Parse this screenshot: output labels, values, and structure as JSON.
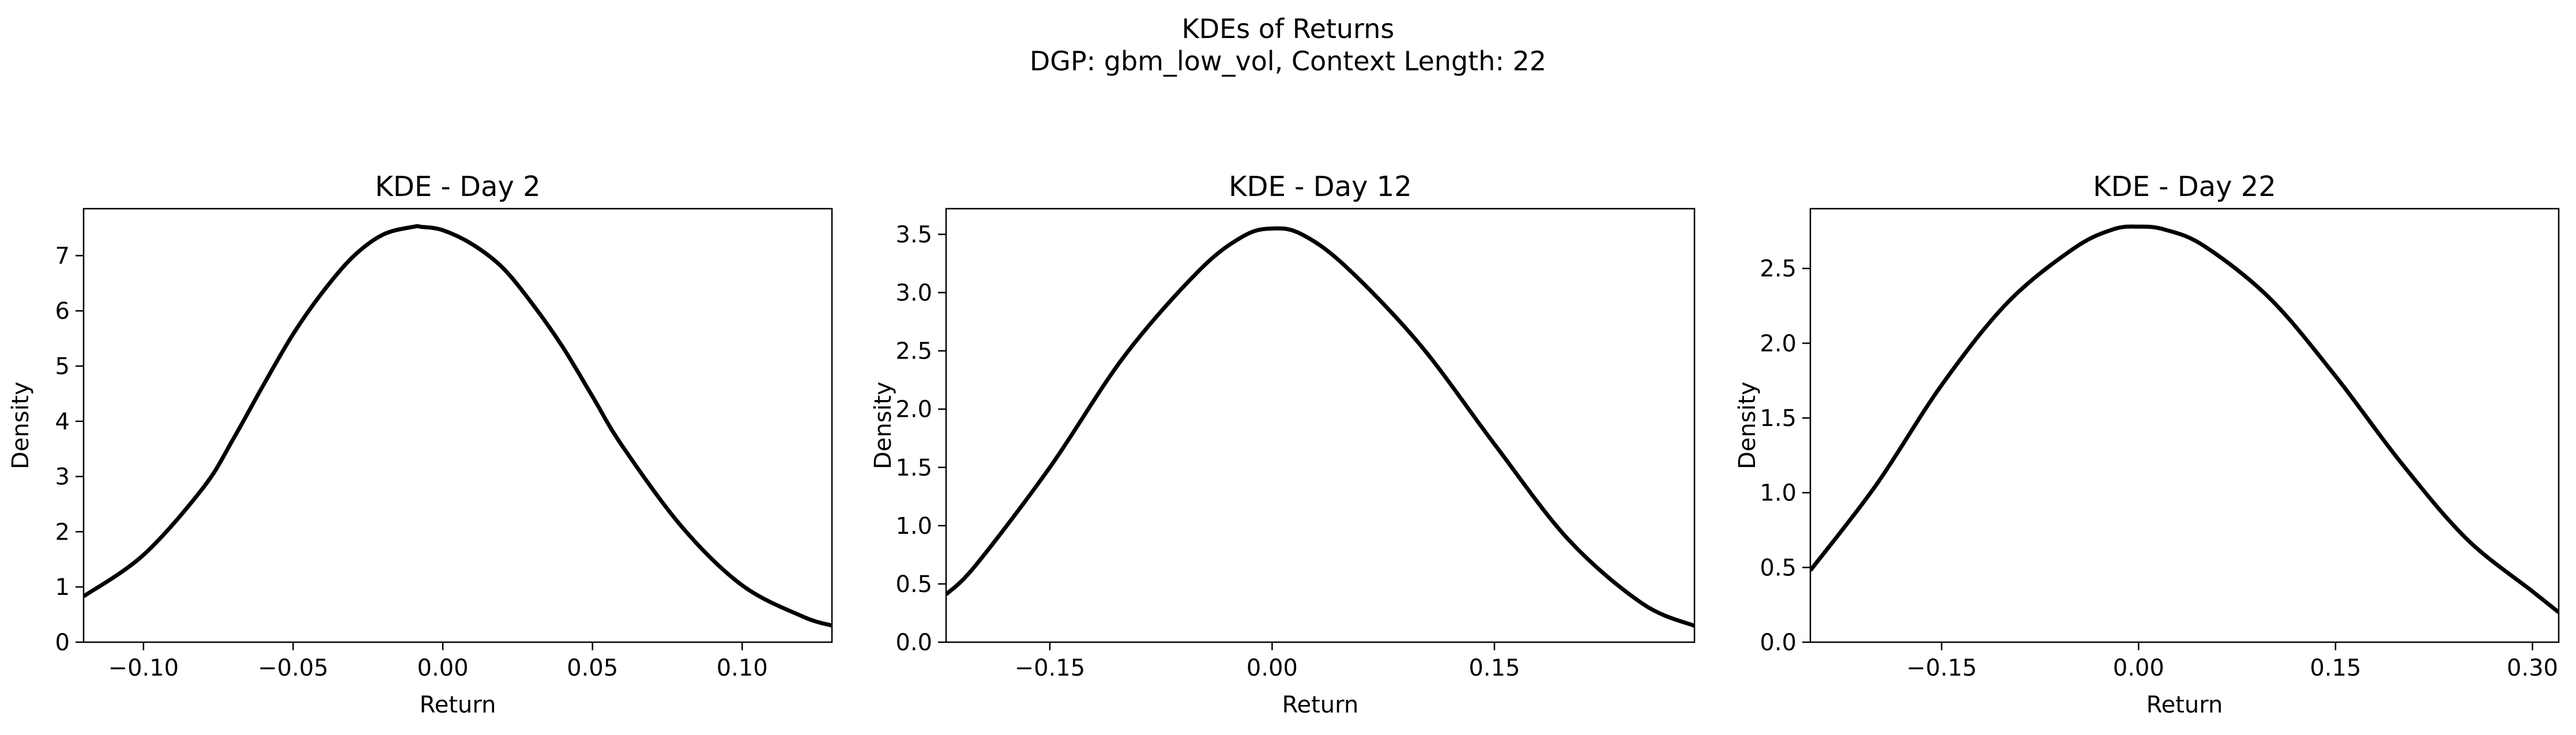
{
  "figure": {
    "title": "KDEs of Returns",
    "subtitle": "DGP: gbm_low_vol, Context Length: 22"
  },
  "chart_data": [
    {
      "type": "line",
      "title": "KDE - Day 2",
      "xlabel": "Return",
      "ylabel": "Density",
      "xlim": [
        -0.12,
        0.13
      ],
      "ylim": [
        0,
        7.85
      ],
      "xticks": [
        -0.1,
        -0.05,
        0.0,
        0.05,
        0.1
      ],
      "xtick_labels": [
        "−0.10",
        "−0.05",
        "0.00",
        "0.05",
        "0.10"
      ],
      "yticks": [
        0,
        1,
        2,
        3,
        4,
        5,
        6,
        7
      ],
      "ytick_labels": [
        "0",
        "1",
        "2",
        "3",
        "4",
        "5",
        "6",
        "7"
      ],
      "grid": false,
      "line_color": "#000000",
      "series": [
        {
          "x": [
            -0.12,
            -0.1,
            -0.08,
            -0.07,
            -0.06,
            -0.05,
            -0.04,
            -0.03,
            -0.02,
            -0.01,
            -0.007,
            0.0,
            0.01,
            0.02,
            0.03,
            0.04,
            0.05,
            0.06,
            0.08,
            0.1,
            0.12,
            0.13
          ],
          "y": [
            0.83,
            1.58,
            2.8,
            3.68,
            4.65,
            5.58,
            6.35,
            6.98,
            7.38,
            7.52,
            7.52,
            7.46,
            7.2,
            6.78,
            6.12,
            5.35,
            4.45,
            3.55,
            2.08,
            1.03,
            0.47,
            0.3
          ]
        }
      ]
    },
    {
      "type": "line",
      "title": "KDE - Day 12",
      "xlabel": "Return",
      "ylabel": "Density",
      "xlim": [
        -0.22,
        0.285
      ],
      "ylim": [
        0,
        3.72
      ],
      "xticks": [
        -0.15,
        0.0,
        0.15
      ],
      "xtick_labels": [
        "−0.15",
        "0.00",
        "0.15"
      ],
      "yticks": [
        0,
        0.5,
        1.0,
        1.5,
        2.0,
        2.5,
        3.0,
        3.5
      ],
      "ytick_labels": [
        "0.0",
        "0.5",
        "1.0",
        "1.5",
        "2.0",
        "2.5",
        "3.0",
        "3.5"
      ],
      "grid": false,
      "line_color": "#000000",
      "series": [
        {
          "x": [
            -0.22,
            -0.2,
            -0.15,
            -0.1,
            -0.05,
            -0.02,
            0.0,
            0.02,
            0.05,
            0.1,
            0.15,
            0.2,
            0.25,
            0.285
          ],
          "y": [
            0.41,
            0.66,
            1.5,
            2.45,
            3.18,
            3.48,
            3.55,
            3.5,
            3.22,
            2.55,
            1.7,
            0.88,
            0.33,
            0.14
          ]
        }
      ]
    },
    {
      "type": "line",
      "title": "KDE - Day 22",
      "xlabel": "Return",
      "ylabel": "Density",
      "xlim": [
        -0.25,
        0.32
      ],
      "ylim": [
        0,
        2.9
      ],
      "xticks": [
        -0.15,
        0.0,
        0.15,
        0.3
      ],
      "xtick_labels": [
        "−0.15",
        "0.00",
        "0.15",
        "0.30"
      ],
      "yticks": [
        0,
        0.5,
        1.0,
        1.5,
        2.0,
        2.5
      ],
      "ytick_labels": [
        "0.0",
        "0.5",
        "1.0",
        "1.5",
        "2.0",
        "2.5"
      ],
      "grid": false,
      "line_color": "#000000",
      "series": [
        {
          "x": [
            -0.25,
            -0.2,
            -0.15,
            -0.1,
            -0.05,
            -0.02,
            0.0,
            0.02,
            0.05,
            0.1,
            0.15,
            0.2,
            0.25,
            0.3,
            0.32
          ],
          "y": [
            0.48,
            1.05,
            1.72,
            2.27,
            2.63,
            2.76,
            2.78,
            2.76,
            2.65,
            2.3,
            1.78,
            1.2,
            0.69,
            0.34,
            0.2
          ]
        }
      ]
    }
  ]
}
